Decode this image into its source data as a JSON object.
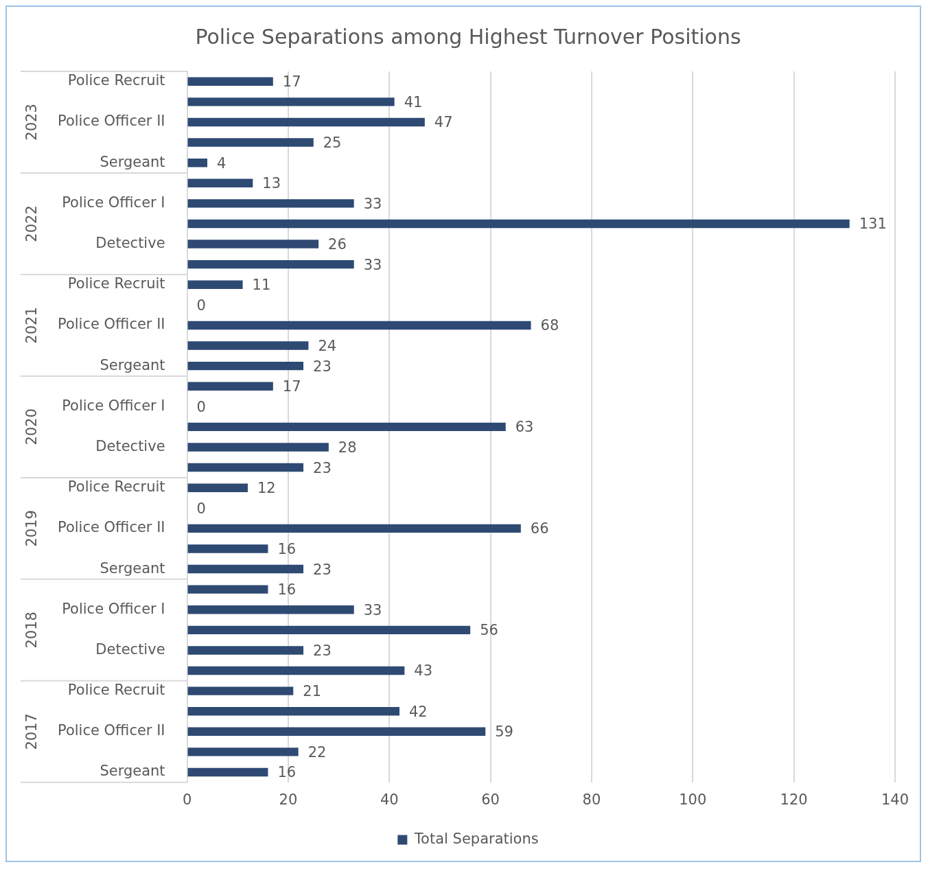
{
  "chart_data": {
    "type": "bar",
    "orientation": "horizontal",
    "title": "Police Separations among Highest Turnover Positions",
    "categories": [
      "Police Recruit",
      null,
      "Police Officer II",
      null,
      "Sergeant",
      null,
      "Police Officer I",
      null,
      "Detective",
      null,
      "Police Recruit",
      null,
      "Police Officer II",
      null,
      "Sergeant",
      null,
      "Police Officer I",
      null,
      "Detective",
      null,
      "Police Recruit",
      null,
      "Police Officer II",
      null,
      "Sergeant",
      null,
      "Police Officer I",
      null,
      "Detective",
      null,
      "Police Recruit",
      null,
      "Police Officer II",
      null,
      "Sergeant"
    ],
    "series": [
      {
        "name": "Total Separations",
        "color": "#2e4a73",
        "values": [
          17,
          41,
          47,
          25,
          4,
          13,
          33,
          131,
          26,
          33,
          11,
          0,
          68,
          24,
          23,
          17,
          0,
          63,
          28,
          23,
          12,
          0,
          66,
          16,
          23,
          16,
          33,
          56,
          23,
          43,
          21,
          42,
          59,
          22,
          16
        ]
      }
    ],
    "annotations": [
      "2023",
      "2022",
      "2021",
      "2020",
      "2019",
      "2018",
      "2017"
    ],
    "xlim": [
      0,
      140
    ],
    "xticks": [
      0,
      20,
      40,
      60,
      80,
      100,
      120,
      140
    ],
    "grid": "x",
    "legend": "bottom",
    "data_labels": true
  }
}
